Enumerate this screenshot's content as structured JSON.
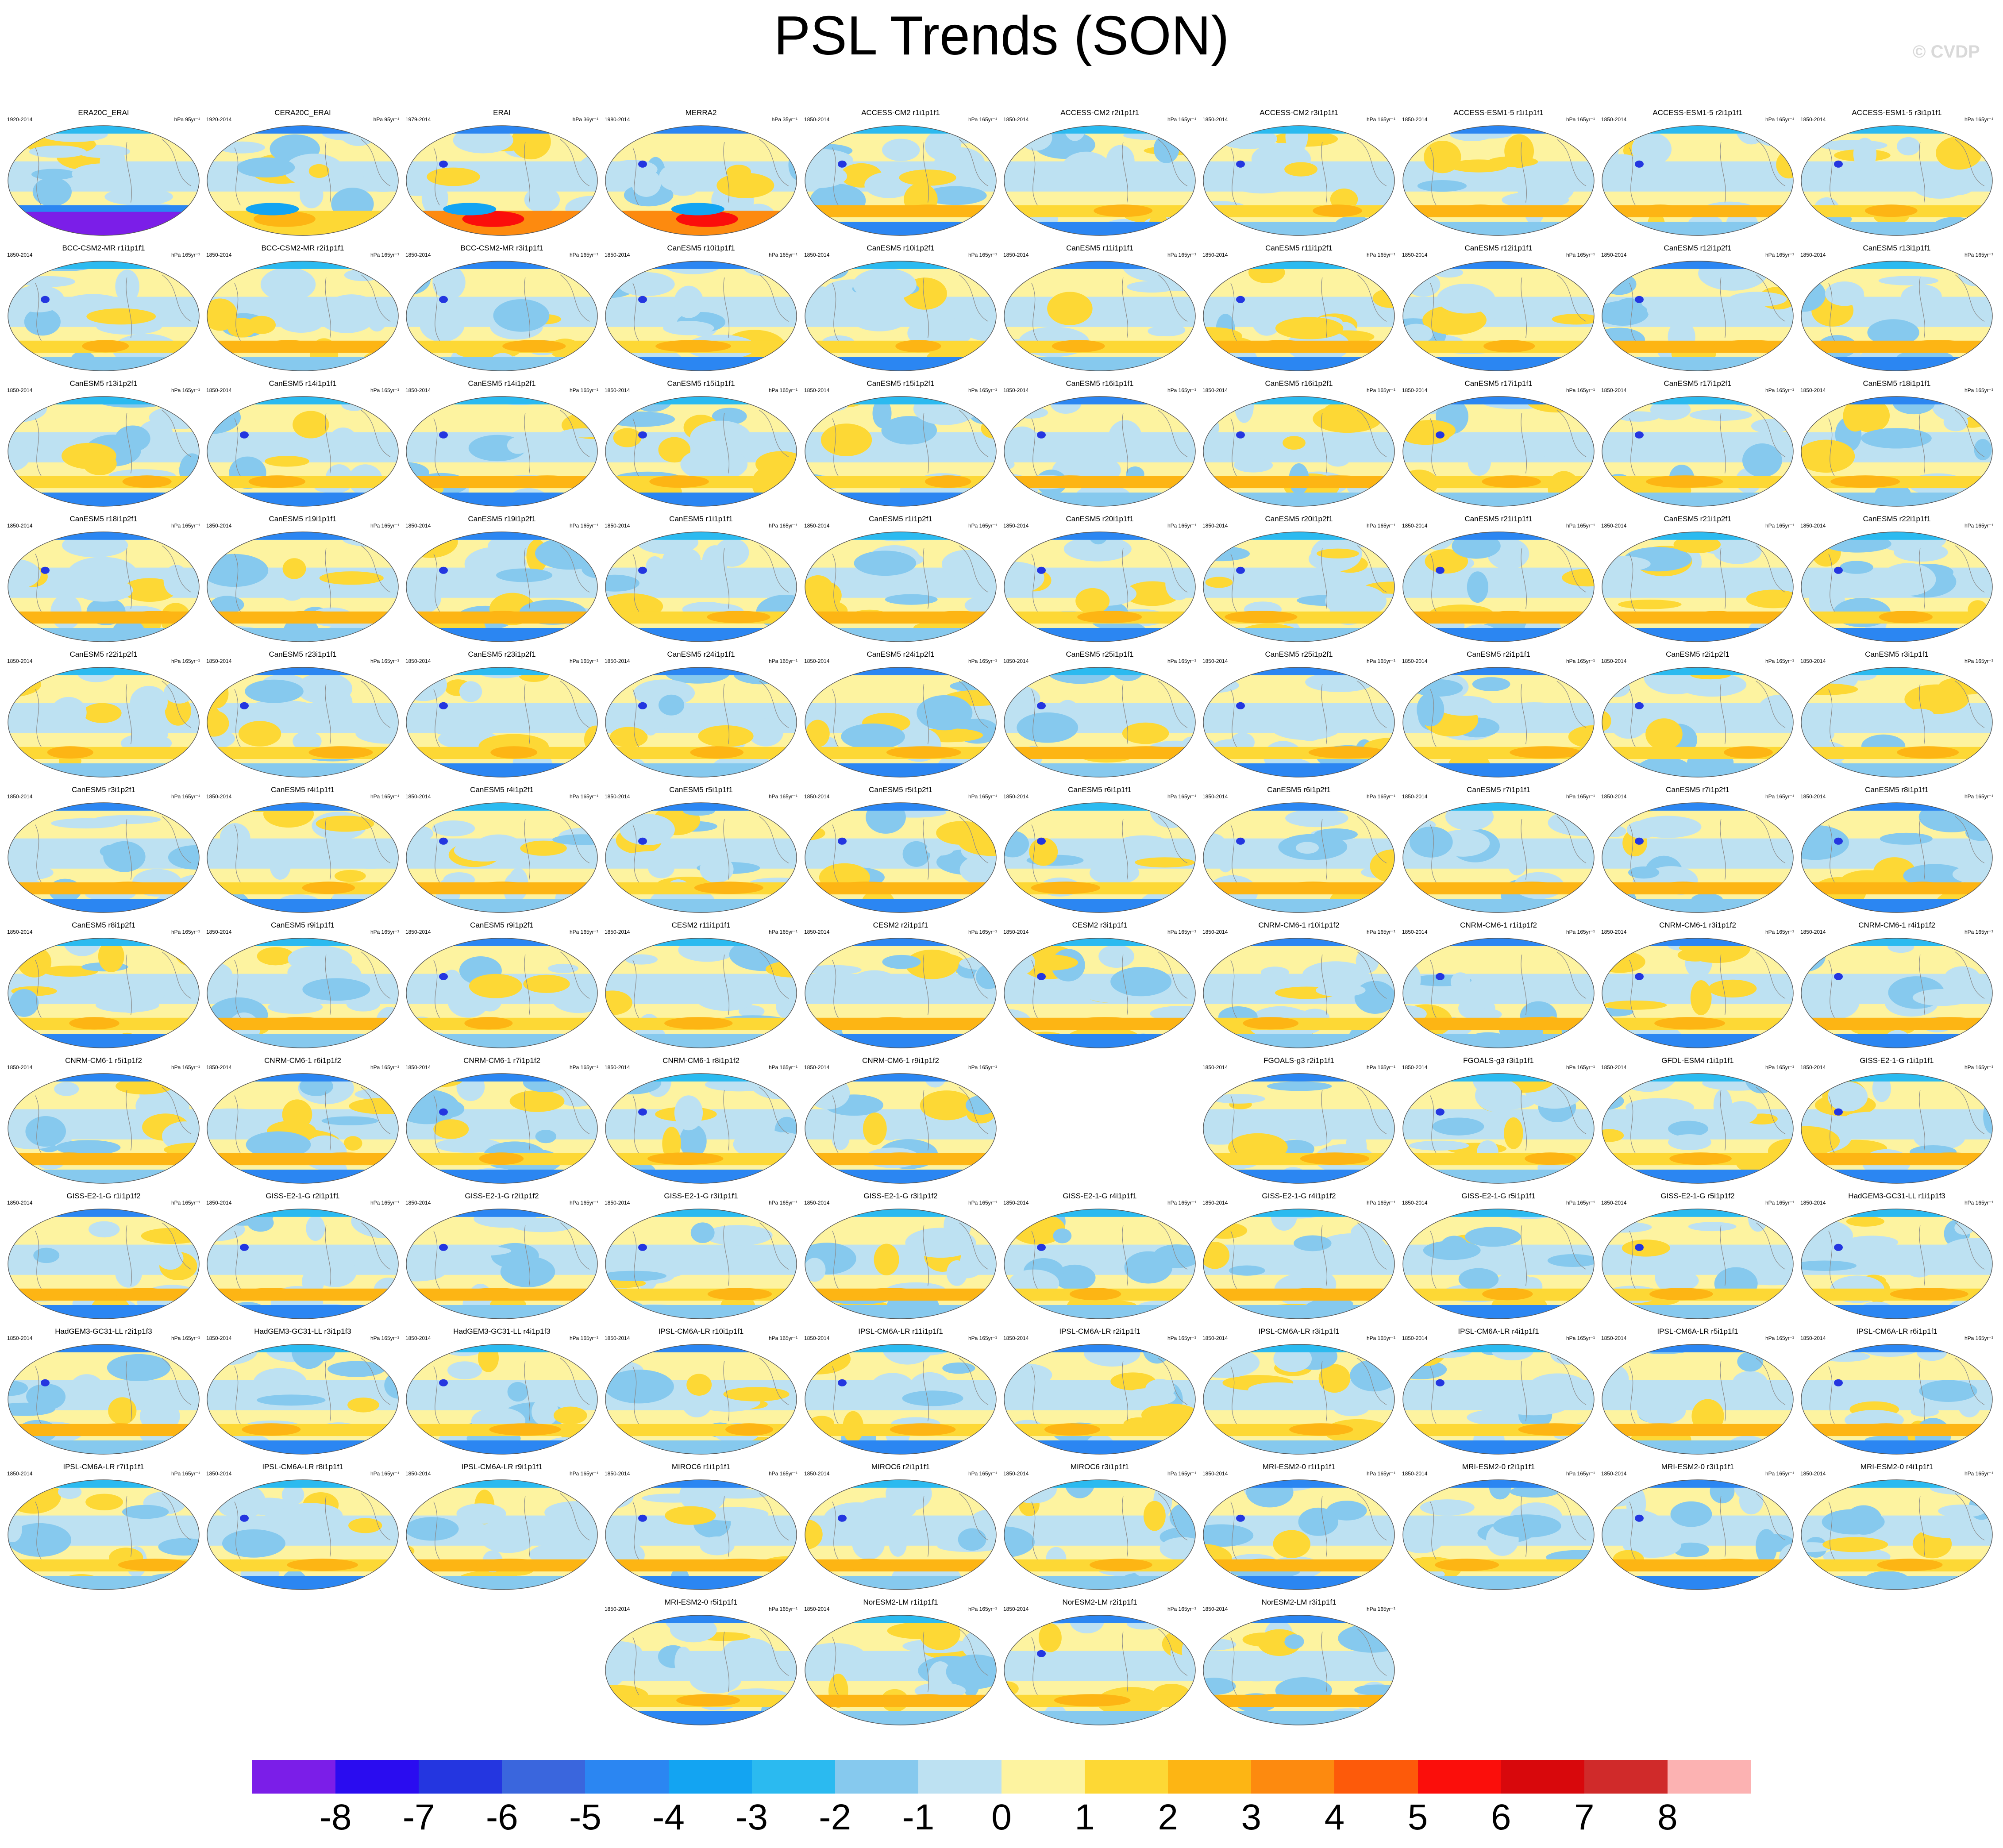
{
  "title": "PSL Trends (SON)",
  "watermark": "© CVDP",
  "chart_data": {
    "type": "heatmap",
    "description_kind": "grid of global map panels",
    "title": "PSL Trends (SON)",
    "units_observational": [
      "hPa 95yr⁻¹",
      "hPa 95yr⁻¹",
      "hPa 36yr⁻¹",
      "hPa 35yr⁻¹"
    ],
    "units_model": "hPa 165yr⁻¹",
    "colorbar": {
      "levels": [
        "-8",
        "-7",
        "-6",
        "-5",
        "-4",
        "-3",
        "-2",
        "-1",
        "0",
        "1",
        "2",
        "3",
        "4",
        "5",
        "6",
        "7",
        "8"
      ],
      "colors": [
        "#7b1ee8",
        "#2a0cf0",
        "#2436e0",
        "#3a66dd",
        "#2b86f2",
        "#13a4f2",
        "#2bbaf0",
        "#86c9ee",
        "#bde1f2",
        "#fdf3a0",
        "#fdd835",
        "#fdb514",
        "#fd8a0f",
        "#fd5a0a",
        "#fb0e0b",
        "#d8080c",
        "#d02a2a",
        "#fcb2b2"
      ]
    },
    "panels": [
      {
        "title": "ERA20C_ERAI",
        "period": "1920-2014",
        "units": "hPa 95yr⁻¹",
        "palette": "strong-south-negative"
      },
      {
        "title": "CERA20C_ERAI",
        "period": "1920-2014",
        "units": "hPa 95yr⁻¹",
        "palette": "south-positive"
      },
      {
        "title": "ERAI",
        "period": "1979-2014",
        "units": "hPa 36yr⁻¹",
        "palette": "strong-south-positive"
      },
      {
        "title": "MERRA2",
        "period": "1980-2014",
        "units": "hPa 35yr⁻¹",
        "palette": "strong-south-positive"
      },
      {
        "title": "ACCESS-CM2 r1i1p1f1",
        "period": "1850-2014",
        "units": "hPa 165yr⁻¹"
      },
      {
        "title": "ACCESS-CM2 r2i1p1f1",
        "period": "1850-2014",
        "units": "hPa 165yr⁻¹"
      },
      {
        "title": "ACCESS-CM2 r3i1p1f1",
        "period": "1850-2014",
        "units": "hPa 165yr⁻¹"
      },
      {
        "title": "ACCESS-ESM1-5 r1i1p1f1",
        "period": "1850-2014",
        "units": "hPa 165yr⁻¹"
      },
      {
        "title": "ACCESS-ESM1-5 r2i1p1f1",
        "period": "1850-2014",
        "units": "hPa 165yr⁻¹"
      },
      {
        "title": "ACCESS-ESM1-5 r3i1p1f1",
        "period": "1850-2014",
        "units": "hPa 165yr⁻¹"
      },
      {
        "title": "BCC-CSM2-MR r1i1p1f1",
        "period": "1850-2014",
        "units": "hPa 165yr⁻¹"
      },
      {
        "title": "BCC-CSM2-MR r2i1p1f1",
        "period": "1850-2014",
        "units": "hPa 165yr⁻¹"
      },
      {
        "title": "BCC-CSM2-MR r3i1p1f1",
        "period": "1850-2014",
        "units": "hPa 165yr⁻¹"
      },
      {
        "title": "CanESM5 r10i1p1f1",
        "period": "1850-2014",
        "units": "hPa 165yr⁻¹"
      },
      {
        "title": "CanESM5 r10i1p2f1",
        "period": "1850-2014",
        "units": "hPa 165yr⁻¹"
      },
      {
        "title": "CanESM5 r11i1p1f1",
        "period": "1850-2014",
        "units": "hPa 165yr⁻¹"
      },
      {
        "title": "CanESM5 r11i1p2f1",
        "period": "1850-2014",
        "units": "hPa 165yr⁻¹"
      },
      {
        "title": "CanESM5 r12i1p1f1",
        "period": "1850-2014",
        "units": "hPa 165yr⁻¹"
      },
      {
        "title": "CanESM5 r12i1p2f1",
        "period": "1850-2014",
        "units": "hPa 165yr⁻¹"
      },
      {
        "title": "CanESM5 r13i1p1f1",
        "period": "1850-2014",
        "units": "hPa 165yr⁻¹"
      },
      {
        "title": "CanESM5 r13i1p2f1",
        "period": "1850-2014",
        "units": "hPa 165yr⁻¹"
      },
      {
        "title": "CanESM5 r14i1p1f1",
        "period": "1850-2014",
        "units": "hPa 165yr⁻¹"
      },
      {
        "title": "CanESM5 r14i1p2f1",
        "period": "1850-2014",
        "units": "hPa 165yr⁻¹"
      },
      {
        "title": "CanESM5 r15i1p1f1",
        "period": "1850-2014",
        "units": "hPa 165yr⁻¹"
      },
      {
        "title": "CanESM5 r15i1p2f1",
        "period": "1850-2014",
        "units": "hPa 165yr⁻¹"
      },
      {
        "title": "CanESM5 r16i1p1f1",
        "period": "1850-2014",
        "units": "hPa 165yr⁻¹"
      },
      {
        "title": "CanESM5 r16i1p2f1",
        "period": "1850-2014",
        "units": "hPa 165yr⁻¹"
      },
      {
        "title": "CanESM5 r17i1p1f1",
        "period": "1850-2014",
        "units": "hPa 165yr⁻¹"
      },
      {
        "title": "CanESM5 r17i1p2f1",
        "period": "1850-2014",
        "units": "hPa 165yr⁻¹"
      },
      {
        "title": "CanESM5 r18i1p1f1",
        "period": "1850-2014",
        "units": "hPa 165yr⁻¹"
      },
      {
        "title": "CanESM5 r18i1p2f1",
        "period": "1850-2014",
        "units": "hPa 165yr⁻¹"
      },
      {
        "title": "CanESM5 r19i1p1f1",
        "period": "1850-2014",
        "units": "hPa 165yr⁻¹"
      },
      {
        "title": "CanESM5 r19i1p2f1",
        "period": "1850-2014",
        "units": "hPa 165yr⁻¹"
      },
      {
        "title": "CanESM5 r1i1p1f1",
        "period": "1850-2014",
        "units": "hPa 165yr⁻¹"
      },
      {
        "title": "CanESM5 r1i1p2f1",
        "period": "1850-2014",
        "units": "hPa 165yr⁻¹"
      },
      {
        "title": "CanESM5 r20i1p1f1",
        "period": "1850-2014",
        "units": "hPa 165yr⁻¹"
      },
      {
        "title": "CanESM5 r20i1p2f1",
        "period": "1850-2014",
        "units": "hPa 165yr⁻¹"
      },
      {
        "title": "CanESM5 r21i1p1f1",
        "period": "1850-2014",
        "units": "hPa 165yr⁻¹"
      },
      {
        "title": "CanESM5 r21i1p2f1",
        "period": "1850-2014",
        "units": "hPa 165yr⁻¹"
      },
      {
        "title": "CanESM5 r22i1p1f1",
        "period": "1850-2014",
        "units": "hPa 165yr⁻¹"
      },
      {
        "title": "CanESM5 r22i1p2f1",
        "period": "1850-2014",
        "units": "hPa 165yr⁻¹"
      },
      {
        "title": "CanESM5 r23i1p1f1",
        "period": "1850-2014",
        "units": "hPa 165yr⁻¹"
      },
      {
        "title": "CanESM5 r23i1p2f1",
        "period": "1850-2014",
        "units": "hPa 165yr⁻¹"
      },
      {
        "title": "CanESM5 r24i1p1f1",
        "period": "1850-2014",
        "units": "hPa 165yr⁻¹"
      },
      {
        "title": "CanESM5 r24i1p2f1",
        "period": "1850-2014",
        "units": "hPa 165yr⁻¹"
      },
      {
        "title": "CanESM5 r25i1p1f1",
        "period": "1850-2014",
        "units": "hPa 165yr⁻¹"
      },
      {
        "title": "CanESM5 r25i1p2f1",
        "period": "1850-2014",
        "units": "hPa 165yr⁻¹"
      },
      {
        "title": "CanESM5 r2i1p1f1",
        "period": "1850-2014",
        "units": "hPa 165yr⁻¹"
      },
      {
        "title": "CanESM5 r2i1p2f1",
        "period": "1850-2014",
        "units": "hPa 165yr⁻¹"
      },
      {
        "title": "CanESM5 r3i1p1f1",
        "period": "1850-2014",
        "units": "hPa 165yr⁻¹"
      },
      {
        "title": "CanESM5 r3i1p2f1",
        "period": "1850-2014",
        "units": "hPa 165yr⁻¹"
      },
      {
        "title": "CanESM5 r4i1p1f1",
        "period": "1850-2014",
        "units": "hPa 165yr⁻¹"
      },
      {
        "title": "CanESM5 r4i1p2f1",
        "period": "1850-2014",
        "units": "hPa 165yr⁻¹"
      },
      {
        "title": "CanESM5 r5i1p1f1",
        "period": "1850-2014",
        "units": "hPa 165yr⁻¹"
      },
      {
        "title": "CanESM5 r5i1p2f1",
        "period": "1850-2014",
        "units": "hPa 165yr⁻¹"
      },
      {
        "title": "CanESM5 r6i1p1f1",
        "period": "1850-2014",
        "units": "hPa 165yr⁻¹"
      },
      {
        "title": "CanESM5 r6i1p2f1",
        "period": "1850-2014",
        "units": "hPa 165yr⁻¹"
      },
      {
        "title": "CanESM5 r7i1p1f1",
        "period": "1850-2014",
        "units": "hPa 165yr⁻¹"
      },
      {
        "title": "CanESM5 r7i1p2f1",
        "period": "1850-2014",
        "units": "hPa 165yr⁻¹"
      },
      {
        "title": "CanESM5 r8i1p1f1",
        "period": "1850-2014",
        "units": "hPa 165yr⁻¹"
      },
      {
        "title": "CanESM5 r8i1p2f1",
        "period": "1850-2014",
        "units": "hPa 165yr⁻¹"
      },
      {
        "title": "CanESM5 r9i1p1f1",
        "period": "1850-2014",
        "units": "hPa 165yr⁻¹"
      },
      {
        "title": "CanESM5 r9i1p2f1",
        "period": "1850-2014",
        "units": "hPa 165yr⁻¹"
      },
      {
        "title": "CESM2 r11i1p1f1",
        "period": "1850-2014",
        "units": "hPa 165yr⁻¹"
      },
      {
        "title": "CESM2 r2i1p1f1",
        "period": "1850-2014",
        "units": "hPa 165yr⁻¹"
      },
      {
        "title": "CESM2 r3i1p1f1",
        "period": "1850-2014",
        "units": "hPa 165yr⁻¹"
      },
      {
        "title": "CNRM-CM6-1 r10i1p1f2",
        "period": "1850-2014",
        "units": "hPa 165yr⁻¹"
      },
      {
        "title": "CNRM-CM6-1 r1i1p1f2",
        "period": "1850-2014",
        "units": "hPa 165yr⁻¹"
      },
      {
        "title": "CNRM-CM6-1 r3i1p1f2",
        "period": "1850-2014",
        "units": "hPa 165yr⁻¹"
      },
      {
        "title": "CNRM-CM6-1 r4i1p1f2",
        "period": "1850-2014",
        "units": "hPa 165yr⁻¹"
      },
      {
        "title": "CNRM-CM6-1 r5i1p1f2",
        "period": "1850-2014",
        "units": "hPa 165yr⁻¹"
      },
      {
        "title": "CNRM-CM6-1 r6i1p1f2",
        "period": "1850-2014",
        "units": "hPa 165yr⁻¹"
      },
      {
        "title": "CNRM-CM6-1 r7i1p1f2",
        "period": "1850-2014",
        "units": "hPa 165yr⁻¹"
      },
      {
        "title": "CNRM-CM6-1 r8i1p1f2",
        "period": "1850-2014",
        "units": "hPa 165yr⁻¹"
      },
      {
        "title": "CNRM-CM6-1 r9i1p1f2",
        "period": "1850-2014",
        "units": "hPa 165yr⁻¹"
      },
      null,
      {
        "title": "FGOALS-g3 r2i1p1f1",
        "period": "1850-2014",
        "units": "hPa 165yr⁻¹"
      },
      {
        "title": "FGOALS-g3 r3i1p1f1",
        "period": "1850-2014",
        "units": "hPa 165yr⁻¹"
      },
      {
        "title": "GFDL-ESM4 r1i1p1f1",
        "period": "1850-2014",
        "units": "hPa 165yr⁻¹"
      },
      {
        "title": "GISS-E2-1-G r1i1p1f1",
        "period": "1850-2014",
        "units": "hPa 165yr⁻¹"
      },
      {
        "title": "GISS-E2-1-G r1i1p1f2",
        "period": "1850-2014",
        "units": "hPa 165yr⁻¹"
      },
      {
        "title": "GISS-E2-1-G r2i1p1f1",
        "period": "1850-2014",
        "units": "hPa 165yr⁻¹"
      },
      {
        "title": "GISS-E2-1-G r2i1p1f2",
        "period": "1850-2014",
        "units": "hPa 165yr⁻¹"
      },
      {
        "title": "GISS-E2-1-G r3i1p1f1",
        "period": "1850-2014",
        "units": "hPa 165yr⁻¹"
      },
      {
        "title": "GISS-E2-1-G r3i1p1f2",
        "period": "1850-2014",
        "units": "hPa 165yr⁻¹"
      },
      {
        "title": "GISS-E2-1-G r4i1p1f1",
        "period": "1850-2014",
        "units": "hPa 165yr⁻¹"
      },
      {
        "title": "GISS-E2-1-G r4i1p1f2",
        "period": "1850-2014",
        "units": "hPa 165yr⁻¹"
      },
      {
        "title": "GISS-E2-1-G r5i1p1f1",
        "period": "1850-2014",
        "units": "hPa 165yr⁻¹"
      },
      {
        "title": "GISS-E2-1-G r5i1p1f2",
        "period": "1850-2014",
        "units": "hPa 165yr⁻¹"
      },
      {
        "title": "HadGEM3-GC31-LL r1i1p1f3",
        "period": "1850-2014",
        "units": "hPa 165yr⁻¹"
      },
      {
        "title": "HadGEM3-GC31-LL r2i1p1f3",
        "period": "1850-2014",
        "units": "hPa 165yr⁻¹"
      },
      {
        "title": "HadGEM3-GC31-LL r3i1p1f3",
        "period": "1850-2014",
        "units": "hPa 165yr⁻¹"
      },
      {
        "title": "HadGEM3-GC31-LL r4i1p1f3",
        "period": "1850-2014",
        "units": "hPa 165yr⁻¹"
      },
      {
        "title": "IPSL-CM6A-LR r10i1p1f1",
        "period": "1850-2014",
        "units": "hPa 165yr⁻¹"
      },
      {
        "title": "IPSL-CM6A-LR r11i1p1f1",
        "period": "1850-2014",
        "units": "hPa 165yr⁻¹"
      },
      {
        "title": "IPSL-CM6A-LR r2i1p1f1",
        "period": "1850-2014",
        "units": "hPa 165yr⁻¹"
      },
      {
        "title": "IPSL-CM6A-LR r3i1p1f1",
        "period": "1850-2014",
        "units": "hPa 165yr⁻¹"
      },
      {
        "title": "IPSL-CM6A-LR r4i1p1f1",
        "period": "1850-2014",
        "units": "hPa 165yr⁻¹"
      },
      {
        "title": "IPSL-CM6A-LR r5i1p1f1",
        "period": "1850-2014",
        "units": "hPa 165yr⁻¹"
      },
      {
        "title": "IPSL-CM6A-LR r6i1p1f1",
        "period": "1850-2014",
        "units": "hPa 165yr⁻¹"
      },
      {
        "title": "IPSL-CM6A-LR r7i1p1f1",
        "period": "1850-2014",
        "units": "hPa 165yr⁻¹"
      },
      {
        "title": "IPSL-CM6A-LR r8i1p1f1",
        "period": "1850-2014",
        "units": "hPa 165yr⁻¹"
      },
      {
        "title": "IPSL-CM6A-LR r9i1p1f1",
        "period": "1850-2014",
        "units": "hPa 165yr⁻¹"
      },
      {
        "title": "MIROC6 r1i1p1f1",
        "period": "1850-2014",
        "units": "hPa 165yr⁻¹"
      },
      {
        "title": "MIROC6 r2i1p1f1",
        "period": "1850-2014",
        "units": "hPa 165yr⁻¹"
      },
      {
        "title": "MIROC6 r3i1p1f1",
        "period": "1850-2014",
        "units": "hPa 165yr⁻¹"
      },
      {
        "title": "MRI-ESM2-0 r1i1p1f1",
        "period": "1850-2014",
        "units": "hPa 165yr⁻¹"
      },
      {
        "title": "MRI-ESM2-0 r2i1p1f1",
        "period": "1850-2014",
        "units": "hPa 165yr⁻¹"
      },
      {
        "title": "MRI-ESM2-0 r3i1p1f1",
        "period": "1850-2014",
        "units": "hPa 165yr⁻¹"
      },
      {
        "title": "MRI-ESM2-0 r4i1p1f1",
        "period": "1850-2014",
        "units": "hPa 165yr⁻¹"
      },
      null,
      null,
      null,
      {
        "title": "MRI-ESM2-0 r5i1p1f1",
        "period": "1850-2014",
        "units": "hPa 165yr⁻¹"
      },
      {
        "title": "NorESM2-LM r1i1p1f1",
        "period": "1850-2014",
        "units": "hPa 165yr⁻¹"
      },
      {
        "title": "NorESM2-LM r2i1p1f1",
        "period": "1850-2014",
        "units": "hPa 165yr⁻¹"
      },
      {
        "title": "NorESM2-LM r3i1p1f1",
        "period": "1850-2014",
        "units": "hPa 165yr⁻¹"
      }
    ]
  }
}
